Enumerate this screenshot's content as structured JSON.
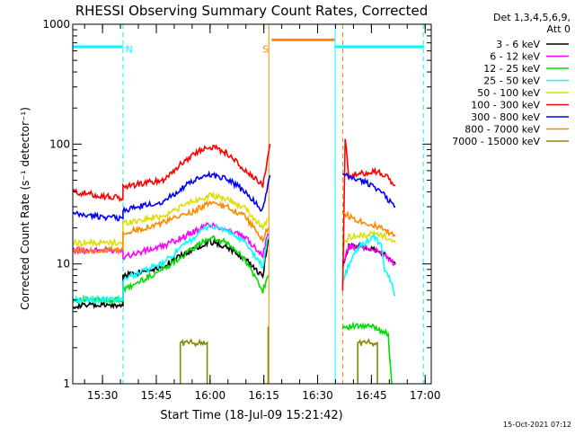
{
  "chart_data": {
    "type": "line",
    "title": "RHESSI Observing Summary Count Rates, Corrected",
    "xlabel": "Start Time (18-Jul-09 15:21:42)",
    "ylabel": "Corrected Count Rate (s⁻¹ detector⁻¹)",
    "y_scale": "log",
    "ylim": [
      1,
      1000
    ],
    "xlim_minutes_since_start": [
      0,
      100
    ],
    "x_ticks": [
      {
        "label": "15:30",
        "t": 8.3
      },
      {
        "label": "15:45",
        "t": 23.3
      },
      {
        "label": "16:00",
        "t": 38.3
      },
      {
        "label": "16:15",
        "t": 53.3
      },
      {
        "label": "16:30",
        "t": 68.3
      },
      {
        "label": "16:45",
        "t": 83.3
      },
      {
        "label": "17:00",
        "t": 98.3
      }
    ],
    "y_ticks": [
      {
        "label": "1",
        "value": 1
      },
      {
        "label": "10",
        "value": 10
      },
      {
        "label": "100",
        "value": 100
      },
      {
        "label": "1000",
        "value": 1000
      }
    ],
    "legend_header": [
      "Det 1,3,4,5,6,9,",
      "Att 0"
    ],
    "legend_placement": "top-right outside",
    "series": [
      {
        "name": "3 - 6 keV",
        "color": "#000000",
        "segments": [
          {
            "t": [
              0,
              14,
              14,
              25,
              33,
              38,
              43,
              48,
              53,
              54.5
            ],
            "v": [
              4.5,
              4.5,
              8,
              9.5,
              13,
              15.5,
              14,
              11,
              8,
              16
            ]
          },
          {
            "t": [
              75.3,
              77,
              80,
              84,
              87,
              90
            ],
            "v": [
              10,
              14,
              14,
              13,
              12,
              10
            ]
          }
        ]
      },
      {
        "name": "6 - 12 keV",
        "color": "#ff00ff",
        "segments": [
          {
            "t": [
              0,
              14,
              14,
              25,
              33,
              38,
              43,
              48,
              53,
              54.5
            ],
            "v": [
              13,
              13,
              11.5,
              14,
              18,
              21.5,
              19.5,
              16.5,
              12,
              18
            ]
          },
          {
            "t": [
              75.3,
              77,
              80,
              84,
              87,
              90
            ],
            "v": [
              10,
              14,
              14,
              13,
              12,
              10
            ]
          }
        ]
      },
      {
        "name": "12 - 25 keV",
        "color": "#00dd00",
        "segments": [
          {
            "t": [
              0,
              14,
              14,
              25,
              33,
              38,
              43,
              48,
              53,
              54.5
            ],
            "v": [
              5,
              5,
              6,
              9,
              13,
              16.5,
              15,
              11,
              6,
              8
            ]
          },
          {
            "t": [
              75.3,
              77,
              80,
              84,
              87,
              88,
              89
            ],
            "v": [
              3,
              3,
              3,
              3,
              2.7,
              2.5,
              1
            ]
          }
        ]
      },
      {
        "name": "25 - 50 keV",
        "color": "#00ffff",
        "segments": [
          {
            "t": [
              0,
              14,
              14,
              25,
              33,
              38,
              43,
              48,
              53,
              54.5
            ],
            "v": [
              5,
              5,
              7.5,
              10,
              16,
              21,
              19,
              15,
              9.5,
              17
            ]
          },
          {
            "t": [
              75.3,
              77,
              80,
              84,
              86,
              87,
              88,
              90
            ],
            "v": [
              7,
              10,
              14,
              17,
              14,
              9,
              8,
              5.5
            ]
          }
        ]
      },
      {
        "name": "50 - 100 keV",
        "color": "#dddd00",
        "segments": [
          {
            "t": [
              0,
              14,
              14,
              25,
              33,
              38,
              43,
              48,
              53,
              54.5
            ],
            "v": [
              15,
              15,
              22,
              25,
              33,
              37,
              35,
              29,
              20,
              24
            ]
          },
          {
            "t": [
              75.3,
              77,
              80,
              84,
              87,
              90
            ],
            "v": [
              14,
              17,
              17,
              18,
              17,
              15
            ]
          }
        ]
      },
      {
        "name": "100 - 300 keV",
        "color": "#ff0000",
        "segments": [
          {
            "t": [
              0,
              14,
              14,
              25,
              33,
              38,
              43,
              48,
              53,
              55
            ],
            "v": [
              40,
              35,
              44,
              50,
              80,
              97,
              85,
              60,
              45,
              100
            ]
          },
          {
            "t": [
              75.3,
              76,
              77,
              80,
              84,
              87,
              90
            ],
            "v": [
              6,
              110,
              55,
              56,
              60,
              55,
              45
            ]
          }
        ]
      },
      {
        "name": "300 - 800 keV",
        "color": "#0000ff",
        "segments": [
          {
            "t": [
              0,
              14,
              14,
              25,
              33,
              38,
              43,
              48,
              53,
              55
            ],
            "v": [
              26,
              24,
              28,
              33,
              48,
              56,
              52,
              40,
              28,
              55
            ]
          },
          {
            "t": [
              75.3,
              77,
              80,
              84,
              87,
              90
            ],
            "v": [
              55,
              53,
              50,
              45,
              37,
              30
            ]
          }
        ]
      },
      {
        "name": "800 - 7000 keV",
        "color": "#ff8800",
        "segments": [
          {
            "t": [
              0,
              14,
              14,
              25,
              33,
              38,
              43,
              48,
              53,
              54.5
            ],
            "v": [
              13,
              13,
              18,
              22,
              27,
              32,
              30,
              25,
              16,
              20
            ]
          },
          {
            "t": [
              75.3,
              77,
              80,
              84,
              87,
              90
            ],
            "v": [
              27,
              25,
              23,
              21,
              19,
              17
            ]
          }
        ]
      },
      {
        "name": "7000 - 15000 keV",
        "color": "#888800",
        "segments": [
          {
            "t": [
              30,
              30,
              37.5,
              37.5
            ],
            "v": [
              1,
              2.2,
              2.2,
              1
            ]
          },
          {
            "t": [
              79.5,
              79.5,
              85,
              85
            ],
            "v": [
              1,
              2.2,
              2.2,
              1
            ]
          },
          {
            "t": [
              54.5,
              54.5
            ],
            "v": [
              1,
              3
            ]
          }
        ]
      }
    ],
    "annotations": [
      {
        "label": "N",
        "color": "#00ffff"
      },
      {
        "label": "S",
        "color": "#ff8800"
      }
    ],
    "attenuator_bars": [
      {
        "t0": 0,
        "t1": 14,
        "v": 650,
        "color": "#00ffff"
      },
      {
        "t0": 55.5,
        "t1": 73,
        "v": 740,
        "color": "#ff8800"
      },
      {
        "t0": 73,
        "t1": 98,
        "v": 650,
        "color": "#00ffff"
      }
    ],
    "vertical_lines": [
      {
        "t": 14,
        "color": "#00ffff",
        "dash": true
      },
      {
        "t": 54.7,
        "color": "#ff8800",
        "dash": false
      },
      {
        "t": 73.2,
        "color": "#00ffff",
        "dash": false
      },
      {
        "t": 75.3,
        "color": "#ff8800",
        "dash": true
      },
      {
        "t": 97.8,
        "color": "#00ffff",
        "dash": true
      }
    ],
    "grid": false,
    "timestamp": "15-Oct-2021 07:12"
  }
}
